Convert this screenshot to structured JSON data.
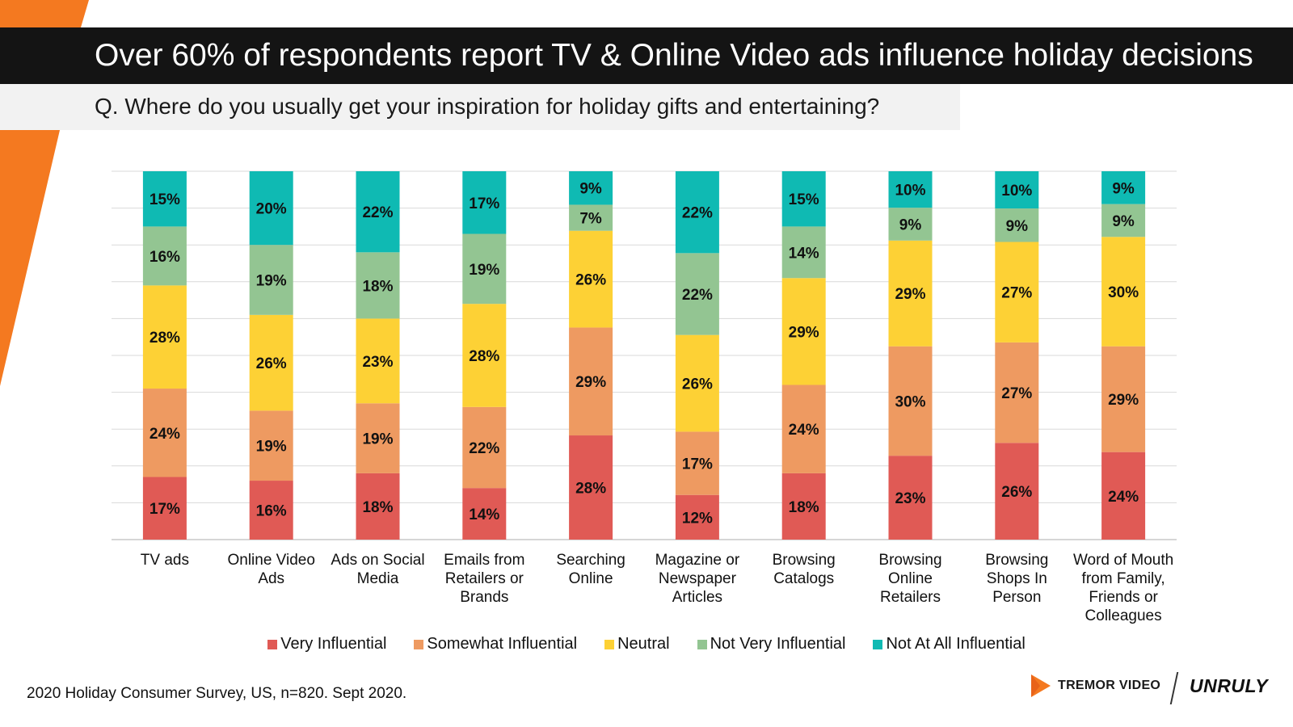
{
  "header": {
    "title": "Over 60% of respondents report TV & Online Video ads influence holiday decisions",
    "subtitle": "Q. Where do you usually get your inspiration for holiday gifts and entertaining?"
  },
  "colors": {
    "accent": "#f47920",
    "very_influential": "#e05a55",
    "somewhat_influential": "#ee9a61",
    "neutral": "#fdd135",
    "not_very_influential": "#93c592",
    "not_at_all_influential": "#0fbab3"
  },
  "chart_data": {
    "type": "bar",
    "stacked": true,
    "percent_stacked": true,
    "title": "Over 60% of respondents report TV & Online Video ads influence holiday decisions",
    "subtitle": "Q. Where do you usually get your inspiration for holiday gifts and entertaining?",
    "xlabel": "",
    "ylabel": "",
    "ylim": [
      0,
      100
    ],
    "grid": true,
    "legend": "bottom-center",
    "categories": [
      "TV ads",
      "Online Video Ads",
      "Ads on Social Media",
      "Emails from Retailers or Brands",
      "Searching Online",
      "Magazine or Newspaper Articles",
      "Browsing Catalogs",
      "Browsing Online Retailers",
      "Browsing Shops In Person",
      "Word of Mouth from Family, Friends or Colleagues"
    ],
    "category_lines": [
      [
        "TV ads"
      ],
      [
        "Online Video",
        "Ads"
      ],
      [
        "Ads on Social",
        "Media"
      ],
      [
        "Emails from",
        "Retailers or",
        "Brands"
      ],
      [
        "Searching",
        "Online"
      ],
      [
        "Magazine or",
        "Newspaper",
        "Articles"
      ],
      [
        "Browsing",
        "Catalogs"
      ],
      [
        "Browsing",
        "Online",
        "Retailers"
      ],
      [
        "Browsing",
        "Shops In",
        "Person"
      ],
      [
        "Word of Mouth",
        "from Family,",
        "Friends or",
        "Colleagues"
      ]
    ],
    "series": [
      {
        "name": "Very Influential",
        "color": "#e05a55",
        "values": [
          17,
          16,
          18,
          14,
          28,
          12,
          18,
          23,
          26,
          24
        ]
      },
      {
        "name": "Somewhat Influential",
        "color": "#ee9a61",
        "values": [
          24,
          19,
          19,
          22,
          29,
          17,
          24,
          30,
          27,
          29
        ]
      },
      {
        "name": "Neutral",
        "color": "#fdd135",
        "values": [
          28,
          26,
          23,
          28,
          26,
          26,
          29,
          29,
          27,
          30
        ]
      },
      {
        "name": "Not Very Influential",
        "color": "#93c592",
        "values": [
          16,
          19,
          18,
          19,
          7,
          22,
          14,
          9,
          9,
          9
        ]
      },
      {
        "name": "Not At All Influential",
        "color": "#0fbab3",
        "values": [
          15,
          20,
          22,
          17,
          9,
          22,
          15,
          10,
          10,
          9
        ]
      }
    ],
    "value_suffix": "%"
  },
  "footer": {
    "source": "2020 Holiday Consumer Survey, US, n=820. Sept 2020."
  },
  "logos": {
    "tremor": "TREMOR VIDEO",
    "unruly": "UNRULY"
  },
  "icons": {
    "tremor_logo": "play-triangle-icon"
  }
}
